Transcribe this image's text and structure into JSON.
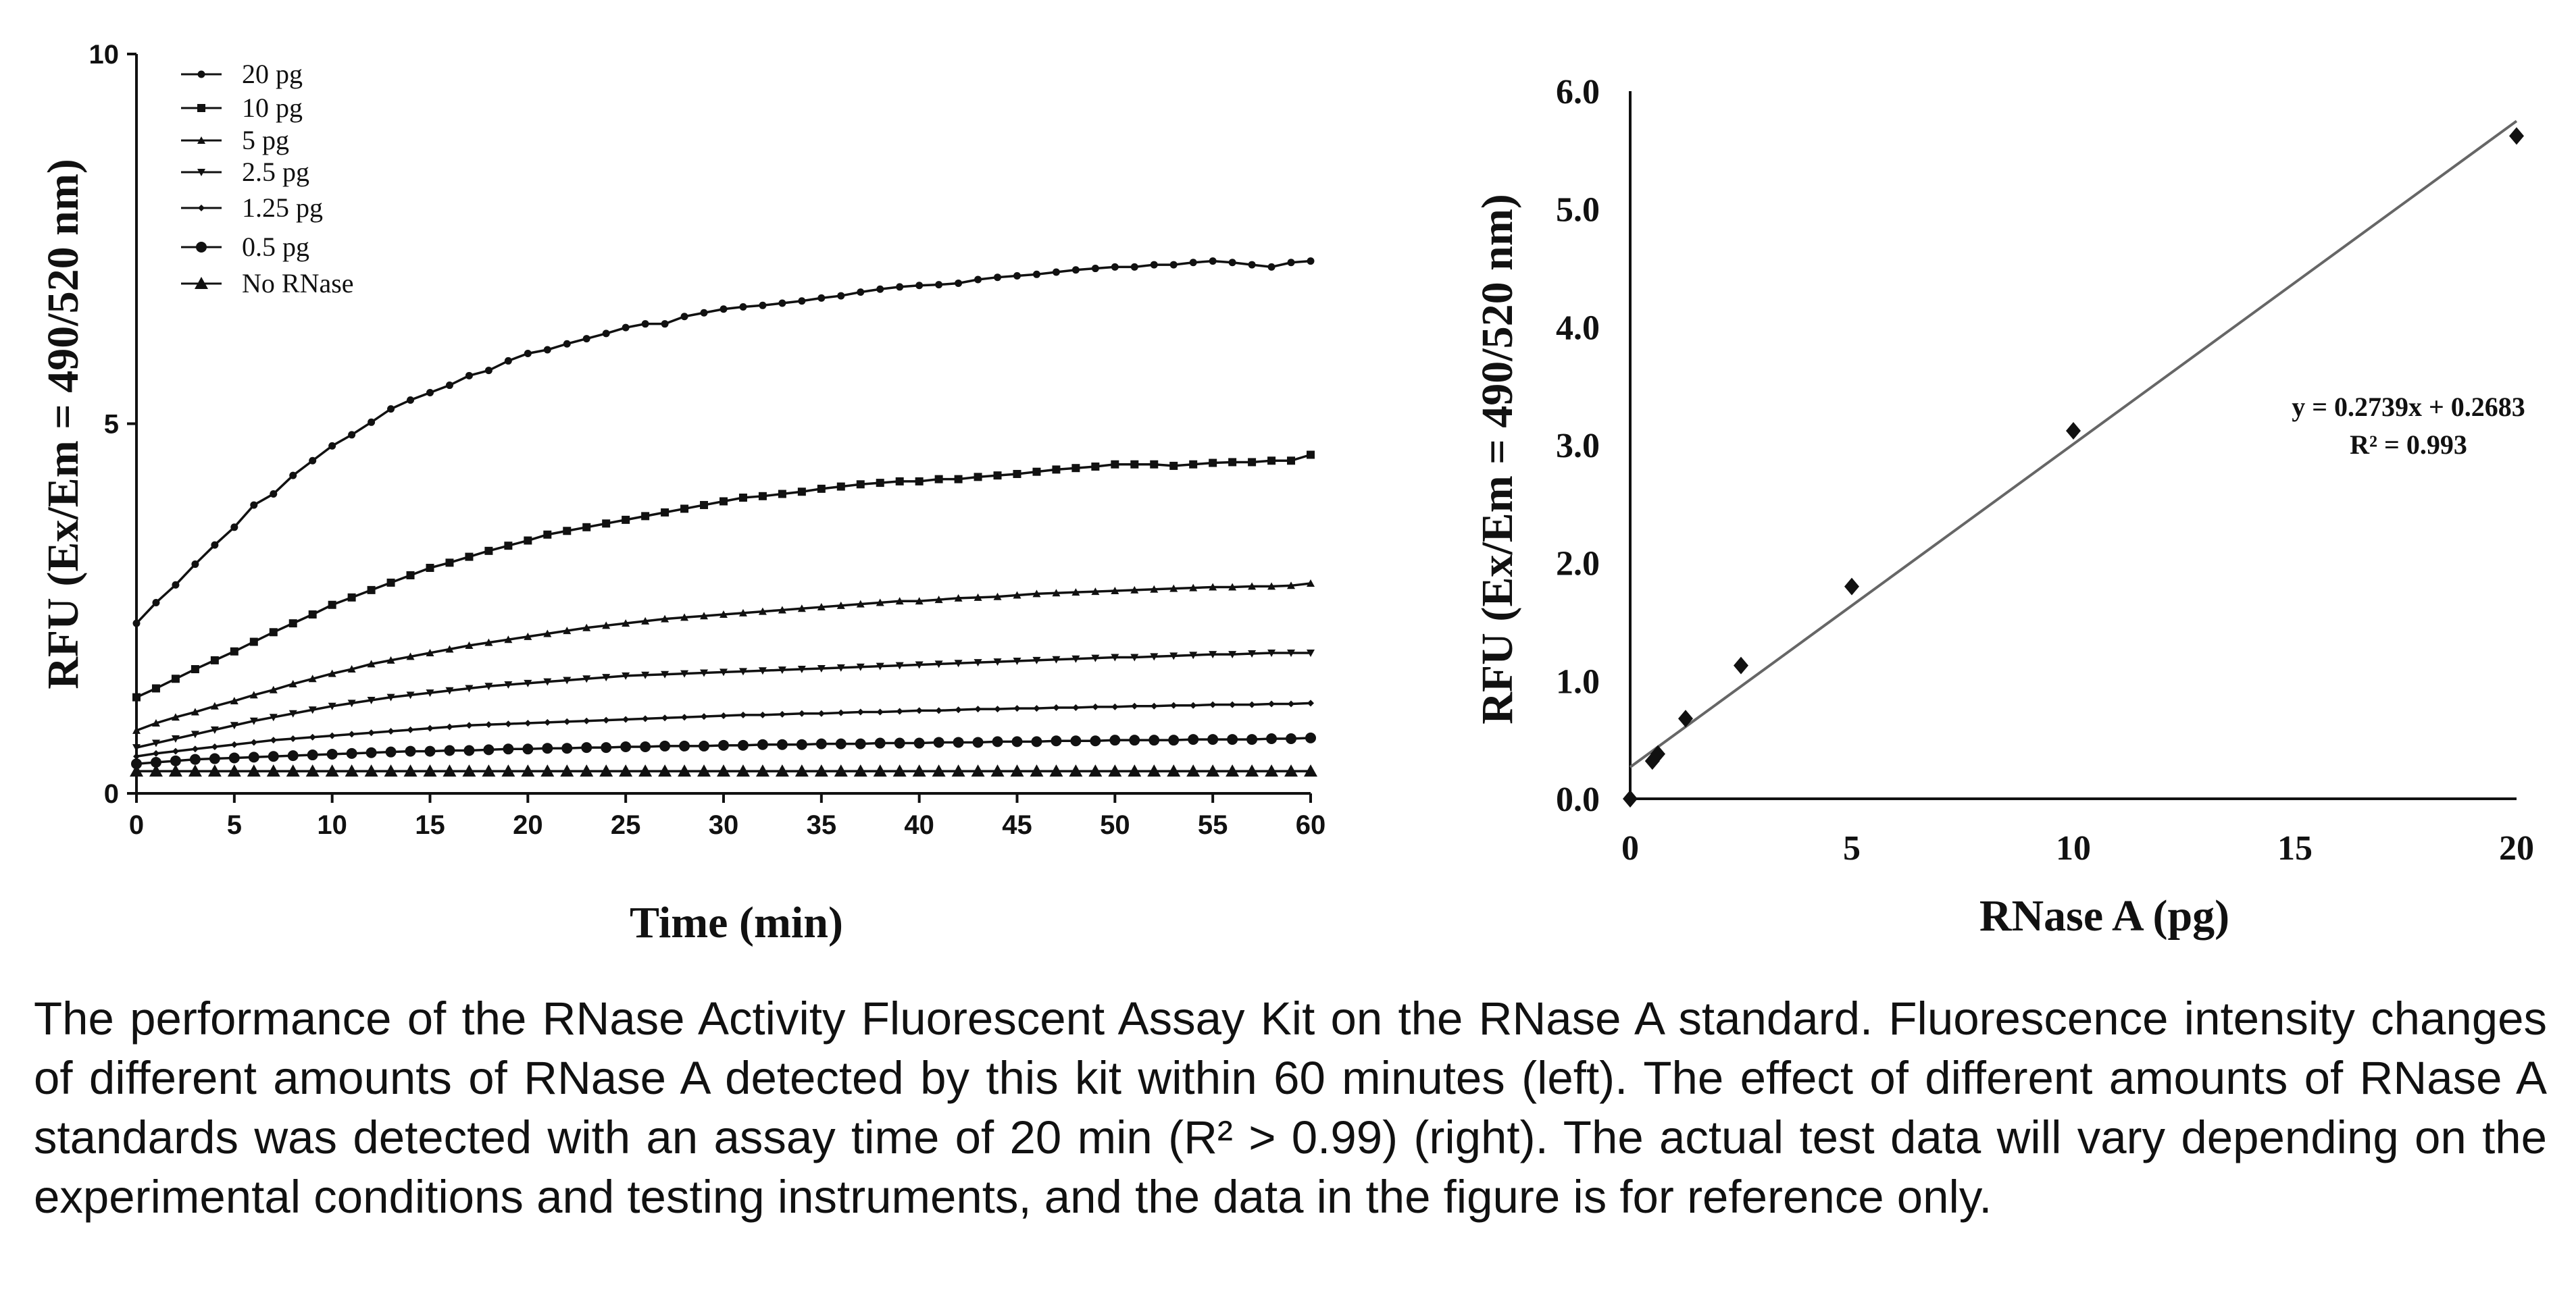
{
  "chart_data": [
    {
      "type": "line",
      "title": "",
      "xlabel": "Time (min)",
      "ylabel": "RFU (Ex/Em = 490/520 nm)",
      "xlim": [
        0,
        60
      ],
      "ylim": [
        0,
        10
      ],
      "xticks": [
        "0",
        "5",
        "10",
        "15",
        "20",
        "25",
        "30",
        "35",
        "40",
        "45",
        "50",
        "55",
        "60"
      ],
      "yticks": [
        "0",
        "5",
        "10"
      ],
      "grid": false,
      "legend": "top-left",
      "x": [
        0,
        1,
        2,
        3,
        4,
        5,
        6,
        7,
        8,
        9,
        10,
        11,
        12,
        13,
        14,
        15,
        16,
        17,
        18,
        19,
        20,
        21,
        22,
        23,
        24,
        25,
        26,
        27,
        28,
        29,
        30,
        31,
        32,
        33,
        34,
        35,
        36,
        37,
        38,
        39,
        40,
        41,
        42,
        43,
        44,
        45,
        46,
        47,
        48,
        49,
        50,
        51,
        52,
        53,
        54,
        55,
        56,
        57,
        58,
        59,
        60
      ],
      "series": [
        {
          "name": "20 pg",
          "marker": "circle-small",
          "values": [
            2.3,
            2.58,
            2.82,
            3.1,
            3.36,
            3.6,
            3.9,
            4.05,
            4.3,
            4.5,
            4.7,
            4.85,
            5.02,
            5.2,
            5.32,
            5.42,
            5.52,
            5.65,
            5.72,
            5.85,
            5.95,
            6.0,
            6.08,
            6.15,
            6.22,
            6.3,
            6.35,
            6.35,
            6.45,
            6.5,
            6.55,
            6.58,
            6.6,
            6.63,
            6.66,
            6.7,
            6.73,
            6.78,
            6.82,
            6.85,
            6.87,
            6.88,
            6.9,
            6.95,
            6.98,
            7.0,
            7.02,
            7.05,
            7.08,
            7.1,
            7.12,
            7.12,
            7.15,
            7.15,
            7.18,
            7.2,
            7.18,
            7.15,
            7.12,
            7.18,
            7.2
          ]
        },
        {
          "name": "10 pg",
          "marker": "square",
          "values": [
            1.3,
            1.42,
            1.55,
            1.68,
            1.8,
            1.92,
            2.05,
            2.18,
            2.3,
            2.42,
            2.55,
            2.65,
            2.75,
            2.85,
            2.95,
            3.05,
            3.12,
            3.2,
            3.28,
            3.35,
            3.42,
            3.5,
            3.55,
            3.6,
            3.65,
            3.7,
            3.75,
            3.8,
            3.85,
            3.9,
            3.95,
            4.0,
            4.02,
            4.05,
            4.08,
            4.12,
            4.15,
            4.18,
            4.2,
            4.22,
            4.22,
            4.25,
            4.25,
            4.28,
            4.3,
            4.32,
            4.35,
            4.38,
            4.4,
            4.42,
            4.45,
            4.45,
            4.45,
            4.43,
            4.45,
            4.47,
            4.48,
            4.48,
            4.5,
            4.5,
            4.58
          ]
        },
        {
          "name": "5 pg",
          "marker": "triangle-small",
          "values": [
            0.85,
            0.95,
            1.03,
            1.1,
            1.18,
            1.25,
            1.33,
            1.4,
            1.48,
            1.55,
            1.62,
            1.68,
            1.75,
            1.8,
            1.85,
            1.9,
            1.95,
            2.0,
            2.04,
            2.08,
            2.12,
            2.16,
            2.2,
            2.24,
            2.27,
            2.3,
            2.33,
            2.36,
            2.38,
            2.4,
            2.42,
            2.44,
            2.46,
            2.48,
            2.5,
            2.52,
            2.54,
            2.56,
            2.58,
            2.6,
            2.6,
            2.62,
            2.64,
            2.65,
            2.66,
            2.68,
            2.7,
            2.71,
            2.72,
            2.73,
            2.74,
            2.75,
            2.76,
            2.77,
            2.78,
            2.79,
            2.79,
            2.8,
            2.8,
            2.81,
            2.84
          ]
        },
        {
          "name": "2.5 pg",
          "marker": "triangle-down",
          "values": [
            0.62,
            0.68,
            0.74,
            0.8,
            0.86,
            0.92,
            0.98,
            1.03,
            1.08,
            1.13,
            1.18,
            1.22,
            1.26,
            1.3,
            1.33,
            1.36,
            1.39,
            1.42,
            1.45,
            1.47,
            1.49,
            1.51,
            1.53,
            1.55,
            1.57,
            1.59,
            1.6,
            1.61,
            1.62,
            1.63,
            1.64,
            1.65,
            1.66,
            1.67,
            1.68,
            1.69,
            1.7,
            1.71,
            1.72,
            1.73,
            1.74,
            1.75,
            1.76,
            1.77,
            1.78,
            1.79,
            1.8,
            1.81,
            1.82,
            1.83,
            1.84,
            1.84,
            1.85,
            1.86,
            1.87,
            1.88,
            1.88,
            1.89,
            1.9,
            1.9,
            1.9
          ]
        },
        {
          "name": "1.25 pg",
          "marker": "diamond-small",
          "values": [
            0.5,
            0.54,
            0.57,
            0.6,
            0.63,
            0.66,
            0.69,
            0.72,
            0.74,
            0.76,
            0.78,
            0.8,
            0.82,
            0.84,
            0.86,
            0.88,
            0.9,
            0.92,
            0.93,
            0.94,
            0.95,
            0.96,
            0.97,
            0.98,
            0.99,
            1.0,
            1.01,
            1.02,
            1.03,
            1.04,
            1.05,
            1.06,
            1.06,
            1.07,
            1.08,
            1.08,
            1.09,
            1.1,
            1.1,
            1.11,
            1.12,
            1.12,
            1.13,
            1.14,
            1.14,
            1.15,
            1.15,
            1.16,
            1.16,
            1.17,
            1.17,
            1.18,
            1.18,
            1.19,
            1.19,
            1.2,
            1.2,
            1.2,
            1.21,
            1.21,
            1.22
          ]
        },
        {
          "name": "0.5 pg",
          "marker": "circle",
          "values": [
            0.4,
            0.42,
            0.44,
            0.46,
            0.47,
            0.48,
            0.49,
            0.5,
            0.51,
            0.52,
            0.53,
            0.54,
            0.55,
            0.56,
            0.57,
            0.57,
            0.58,
            0.58,
            0.59,
            0.6,
            0.6,
            0.61,
            0.61,
            0.62,
            0.62,
            0.63,
            0.63,
            0.64,
            0.64,
            0.64,
            0.65,
            0.65,
            0.66,
            0.66,
            0.66,
            0.67,
            0.67,
            0.67,
            0.68,
            0.68,
            0.68,
            0.69,
            0.69,
            0.69,
            0.7,
            0.7,
            0.7,
            0.71,
            0.71,
            0.71,
            0.72,
            0.72,
            0.72,
            0.72,
            0.73,
            0.73,
            0.73,
            0.73,
            0.74,
            0.74,
            0.75
          ]
        },
        {
          "name": "No RNase",
          "marker": "triangle",
          "values": [
            0.3,
            0.3,
            0.3,
            0.3,
            0.3,
            0.3,
            0.3,
            0.3,
            0.3,
            0.3,
            0.3,
            0.3,
            0.3,
            0.3,
            0.3,
            0.3,
            0.3,
            0.3,
            0.3,
            0.3,
            0.3,
            0.3,
            0.3,
            0.3,
            0.3,
            0.3,
            0.3,
            0.3,
            0.3,
            0.3,
            0.3,
            0.3,
            0.3,
            0.3,
            0.3,
            0.3,
            0.3,
            0.3,
            0.3,
            0.3,
            0.3,
            0.3,
            0.3,
            0.3,
            0.3,
            0.3,
            0.3,
            0.3,
            0.3,
            0.3,
            0.3,
            0.3,
            0.3,
            0.3,
            0.3,
            0.3,
            0.3,
            0.3,
            0.3,
            0.3,
            0.3
          ]
        }
      ]
    },
    {
      "type": "scatter",
      "title": "",
      "xlabel": "RNase A (pg)",
      "ylabel": "RFU (Ex/Em = 490/520 nm)",
      "xlim": [
        0,
        20
      ],
      "ylim": [
        0,
        6.0
      ],
      "xticks": [
        "0",
        "5",
        "10",
        "15",
        "20"
      ],
      "yticks": [
        "0.0",
        "1.0",
        "2.0",
        "3.0",
        "4.0",
        "5.0",
        "6.0"
      ],
      "grid": false,
      "x": [
        0,
        0.5,
        0.625,
        1.25,
        2.5,
        5,
        10,
        20
      ],
      "y": [
        0.0,
        0.32,
        0.38,
        0.68,
        1.13,
        1.8,
        3.12,
        5.62
      ],
      "trendline": {
        "slope": 0.2739,
        "intercept": 0.2683,
        "x_range": [
          0,
          20
        ]
      },
      "annotations": [
        "y = 0.2739x + 0.2683",
        "R² = 0.993"
      ]
    }
  ],
  "caption": "The performance of the RNase Activity Fluorescent Assay Kit on the RNase A standard. Fluorescence intensity changes of different amounts of RNase A detected by this kit within 60 minutes (left). The effect of different amounts of RNase A standards was detected with an assay time of 20 min (R² > 0.99) (right). The actual test data will vary depending on the experimental conditions and testing instruments, and the data in the figure is for reference only."
}
